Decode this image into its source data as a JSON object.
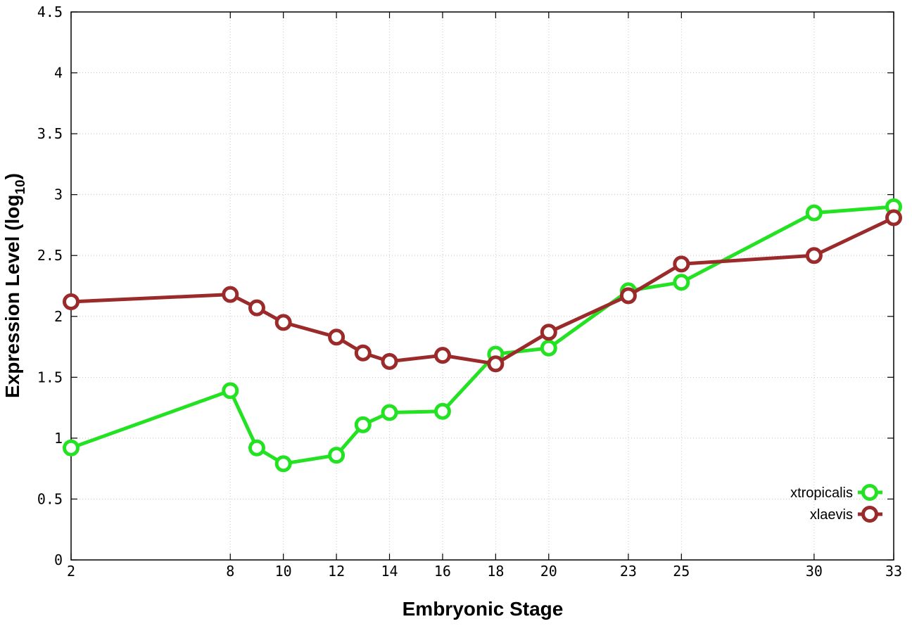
{
  "chart_data": {
    "type": "line",
    "title": "",
    "xlabel": "Embryonic Stage",
    "ylabel": "Expression Level (log",
    "ylabel_subscript": "10",
    "ylabel_suffix": ")",
    "xlim": [
      2,
      33
    ],
    "ylim": [
      0,
      4.5
    ],
    "x_ticks": [
      2,
      8,
      10,
      12,
      14,
      16,
      18,
      20,
      23,
      25,
      30,
      33
    ],
    "y_ticks": [
      0,
      0.5,
      1,
      1.5,
      2,
      2.5,
      3,
      3.5,
      4,
      4.5
    ],
    "grid": true,
    "legend_position": "bottom-right",
    "series": [
      {
        "name": "xtropicalis",
        "color": "#22e222",
        "marker": "circle-open",
        "x": [
          2,
          8,
          9,
          10,
          12,
          13,
          14,
          16,
          18,
          20,
          23,
          25,
          30,
          33
        ],
        "values": [
          0.92,
          1.39,
          0.92,
          0.79,
          0.86,
          1.11,
          1.21,
          1.22,
          1.69,
          1.74,
          2.21,
          2.28,
          2.85,
          2.9
        ]
      },
      {
        "name": "xlaevis",
        "color": "#9b2a2a",
        "marker": "circle-open",
        "x": [
          2,
          8,
          9,
          10,
          12,
          13,
          14,
          16,
          18,
          20,
          23,
          25,
          30,
          33
        ],
        "values": [
          2.12,
          2.18,
          2.07,
          1.95,
          1.83,
          1.7,
          1.63,
          1.68,
          1.61,
          1.87,
          2.17,
          2.43,
          2.5,
          2.81
        ]
      }
    ]
  }
}
